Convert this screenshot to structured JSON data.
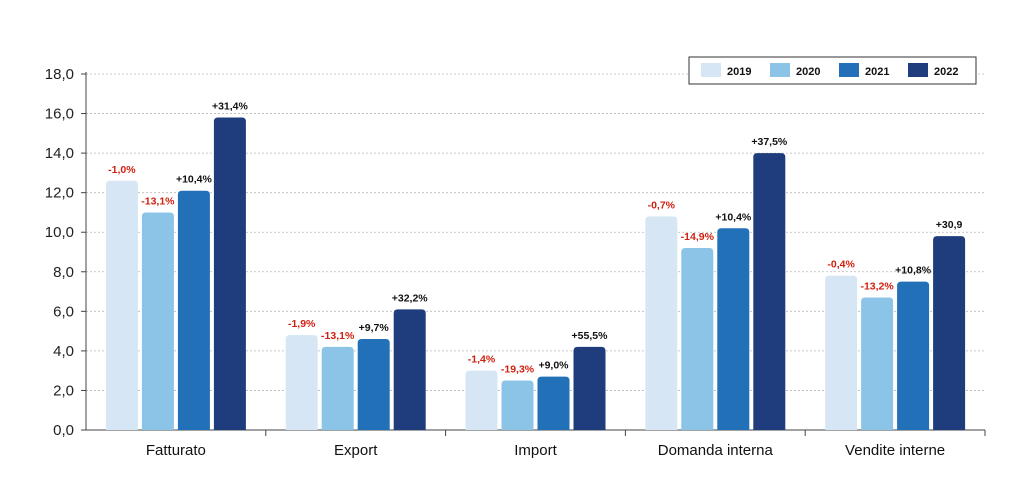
{
  "chart_data": {
    "type": "bar",
    "title": "",
    "xlabel": "",
    "ylabel": "",
    "ylim": [
      0,
      18
    ],
    "yticks": [
      "0,0",
      "2,0",
      "4,0",
      "6,0",
      "8,0",
      "10,0",
      "12,0",
      "14,0",
      "16,0",
      "18,0"
    ],
    "grid": true,
    "legend_position": "top-right",
    "categories": [
      "Fatturato",
      "Export",
      "Import",
      "Domanda interna",
      "Vendite interne"
    ],
    "series": [
      {
        "name": "2019",
        "color": "#d6e6f5",
        "values": [
          12.6,
          4.8,
          3.0,
          10.8,
          7.8
        ],
        "labels": [
          "-1,0%",
          "-1,9%",
          "-1,4%",
          "-0,7%",
          "-0,4%"
        ],
        "label_color": "#d02010"
      },
      {
        "name": "2020",
        "color": "#8cc4e8",
        "values": [
          11.0,
          4.2,
          2.5,
          9.2,
          6.7
        ],
        "labels": [
          "-13,1%",
          "-13,1%",
          "-19,3%",
          "-14,9%",
          "-13,2%"
        ],
        "label_color": "#d02010"
      },
      {
        "name": "2021",
        "color": "#2170b8",
        "values": [
          12.1,
          4.6,
          2.7,
          10.2,
          7.5
        ],
        "labels": [
          "+10,4%",
          "+9,7%",
          "+9,0%",
          "+10,4%",
          "+10,8%"
        ],
        "label_color": "#111111"
      },
      {
        "name": "2022",
        "color": "#1f3c7c",
        "values": [
          15.8,
          6.1,
          4.2,
          14.0,
          9.8
        ],
        "labels": [
          "+31,4%",
          "+32,2%",
          "+55,5%",
          "+37,5%",
          "+30,9"
        ],
        "label_color": "#111111"
      }
    ]
  }
}
